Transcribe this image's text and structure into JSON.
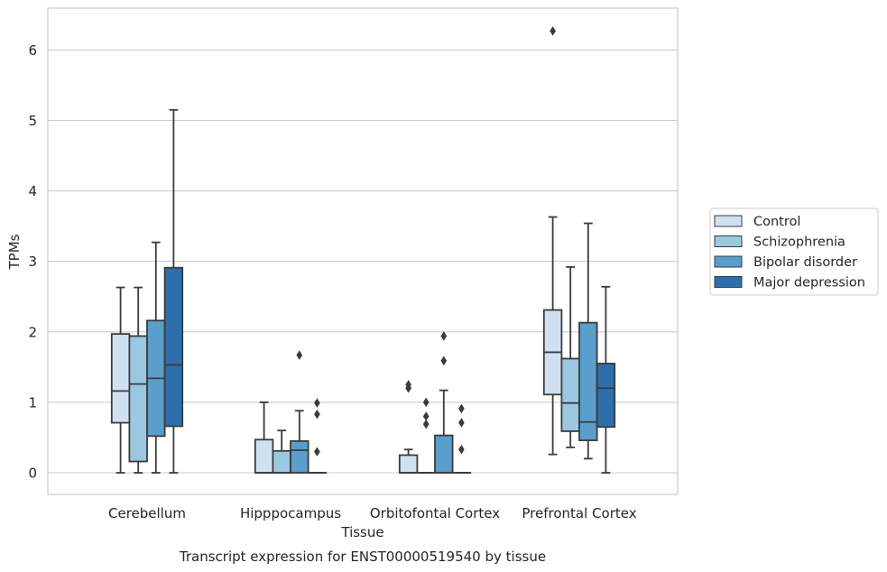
{
  "caption": "Transcript expression for ENST00000519540 by tissue",
  "chart_data": {
    "type": "box",
    "xlabel": "Tissue",
    "ylabel": "TPMs",
    "ylim": [
      -0.3,
      6.6
    ],
    "yticks": [
      0,
      1,
      2,
      3,
      4,
      5,
      6
    ],
    "grid": "horizontal",
    "legend_position": "outside-right",
    "categories": [
      "Cerebellum",
      "Hipppocampus",
      "Orbitofontal Cortex",
      "Prefrontal Cortex"
    ],
    "series": [
      {
        "name": "Control",
        "color": "#d0e0f1",
        "boxes": [
          {
            "whisker_low": 0,
            "q1": 0.71,
            "median": 1.16,
            "q3": 1.97,
            "whisker_high": 2.63,
            "outliers": []
          },
          {
            "whisker_low": 0,
            "q1": 0,
            "median": 0,
            "q3": 0.47,
            "whisker_high": 1.0,
            "outliers": []
          },
          {
            "whisker_low": 0,
            "q1": 0,
            "median": 0,
            "q3": 0.25,
            "whisker_high": 0.33,
            "outliers": [
              1.2,
              1.25
            ]
          },
          {
            "whisker_low": 0.26,
            "q1": 1.11,
            "median": 1.71,
            "q3": 2.31,
            "whisker_high": 3.63,
            "outliers": [
              6.27
            ]
          }
        ]
      },
      {
        "name": "Schizophrenia",
        "color": "#9ac8e0",
        "boxes": [
          {
            "whisker_low": 0,
            "q1": 0.16,
            "median": 1.26,
            "q3": 1.94,
            "whisker_high": 2.63,
            "outliers": []
          },
          {
            "whisker_low": 0,
            "q1": 0,
            "median": 0,
            "q3": 0.31,
            "whisker_high": 0.6,
            "outliers": []
          },
          {
            "whisker_low": 0,
            "q1": 0,
            "median": 0,
            "q3": 0,
            "whisker_high": 0,
            "outliers": [
              0.69,
              0.8,
              1.0
            ]
          },
          {
            "whisker_low": 0.36,
            "q1": 0.59,
            "median": 0.99,
            "q3": 1.62,
            "whisker_high": 2.92,
            "outliers": []
          }
        ]
      },
      {
        "name": "Bipolar disorder",
        "color": "#5a9ecc",
        "boxes": [
          {
            "whisker_low": 0,
            "q1": 0.52,
            "median": 1.34,
            "q3": 2.16,
            "whisker_high": 3.27,
            "outliers": []
          },
          {
            "whisker_low": 0,
            "q1": 0,
            "median": 0.32,
            "q3": 0.45,
            "whisker_high": 0.88,
            "outliers": [
              1.67
            ]
          },
          {
            "whisker_low": 0,
            "q1": 0,
            "median": 0,
            "q3": 0.53,
            "whisker_high": 1.17,
            "outliers": [
              1.59,
              1.94
            ]
          },
          {
            "whisker_low": 0.2,
            "q1": 0.46,
            "median": 0.72,
            "q3": 2.13,
            "whisker_high": 3.54,
            "outliers": []
          }
        ]
      },
      {
        "name": "Major depression",
        "color": "#2d6fad",
        "boxes": [
          {
            "whisker_low": 0,
            "q1": 0.66,
            "median": 1.53,
            "q3": 2.91,
            "whisker_high": 5.15,
            "outliers": []
          },
          {
            "whisker_low": 0,
            "q1": 0,
            "median": 0,
            "q3": 0,
            "whisker_high": 0,
            "outliers": [
              0.3,
              0.83,
              0.99
            ]
          },
          {
            "whisker_low": 0,
            "q1": 0,
            "median": 0,
            "q3": 0,
            "whisker_high": 0,
            "outliers": [
              0.33,
              0.71,
              0.91
            ]
          },
          {
            "whisker_low": 0,
            "q1": 0.65,
            "median": 1.2,
            "q3": 1.55,
            "whisker_high": 2.64,
            "outliers": []
          }
        ]
      }
    ]
  }
}
